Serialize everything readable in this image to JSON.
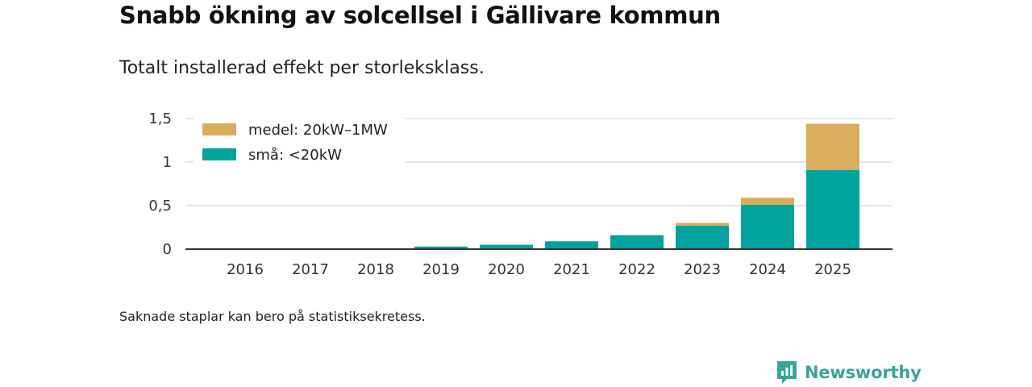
{
  "title": "Snabb ökning av solcellsel i Gällivare kommun",
  "subtitle": "Totalt installerad effekt per storleksklass.",
  "footnote": "Saknade staplar kan bero på statistiksekretess.",
  "brand": {
    "name": "Newsworthy",
    "icon": "newsworthy-logo-icon"
  },
  "colors": {
    "small": "#00a39b",
    "medium": "#d9ad5b",
    "grid": "#dddddd",
    "axis": "#333333"
  },
  "chart_data": {
    "type": "bar",
    "stacked": true,
    "categories": [
      "2016",
      "2017",
      "2018",
      "2019",
      "2020",
      "2021",
      "2022",
      "2023",
      "2024",
      "2025"
    ],
    "series": [
      {
        "name": "små: <20kW",
        "color": "#00a39b",
        "values": [
          0,
          0,
          0,
          0.03,
          0.05,
          0.09,
          0.16,
          0.27,
          0.51,
          0.91
        ]
      },
      {
        "name": "medel: 20kW–1MW",
        "color": "#d9ad5b",
        "values": [
          0,
          0,
          0,
          0,
          0,
          0,
          0,
          0.03,
          0.08,
          0.53
        ]
      }
    ],
    "yticks": [
      "0",
      "0,5",
      "1",
      "1,5"
    ],
    "ylim": [
      0,
      1.5
    ],
    "grid": true,
    "legend": {
      "placement": "top-left",
      "entries": [
        {
          "label": "medel: 20kW–1MW",
          "color": "#d9ad5b"
        },
        {
          "label": "små: <20kW",
          "color": "#00a39b"
        }
      ]
    }
  }
}
